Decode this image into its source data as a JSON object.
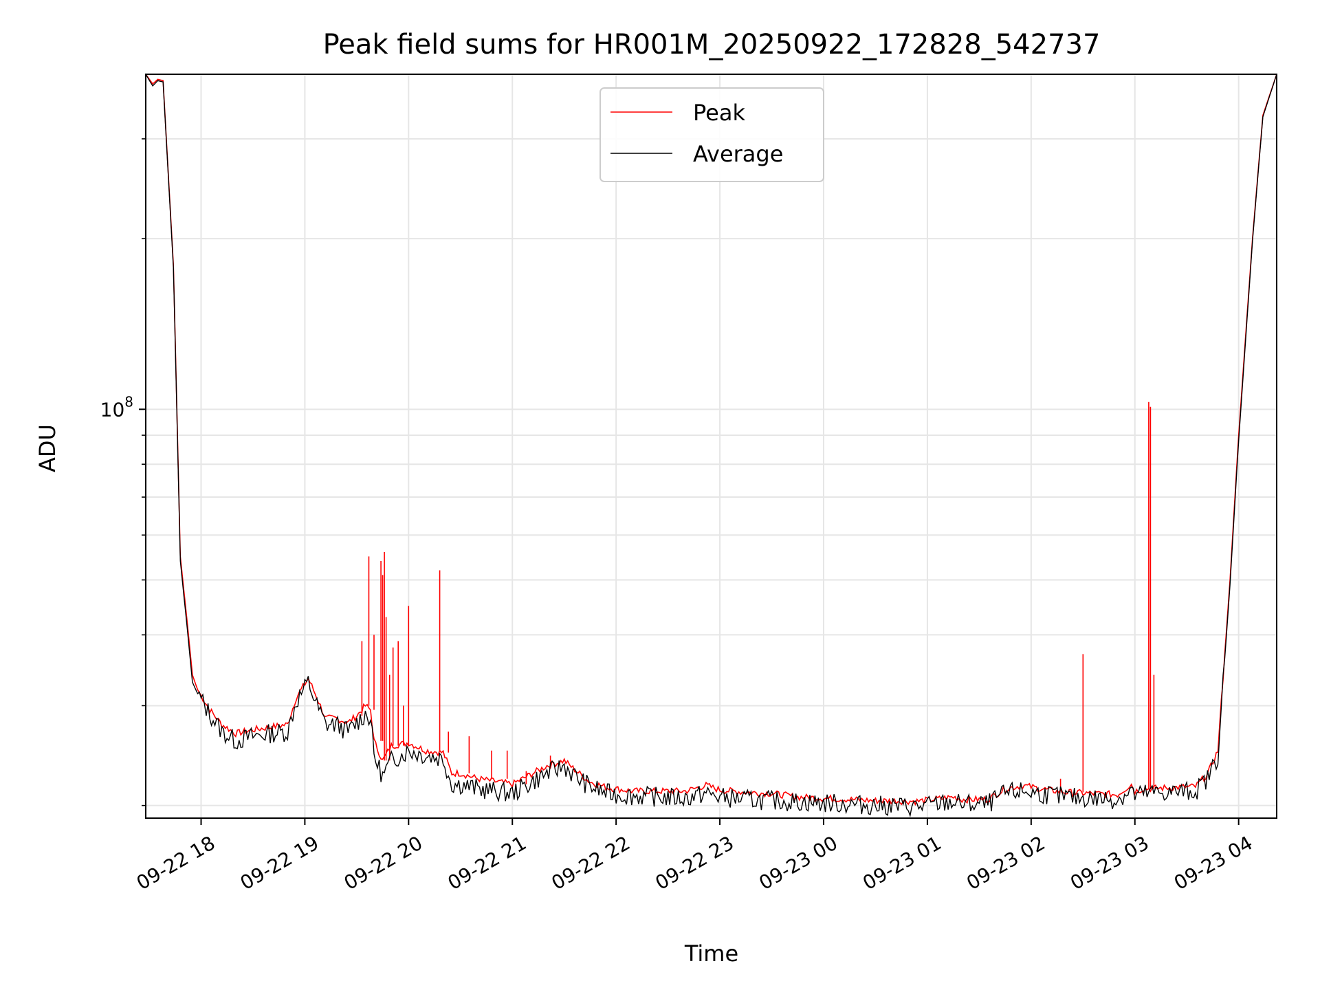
{
  "chart_data": {
    "type": "line",
    "title": "Peak field sums for HR001M_20250922_172828_542737",
    "xlabel": "Time",
    "ylabel": "ADU",
    "yscale": "log",
    "ylim": [
      19000000,
      390000000
    ],
    "xlim": [
      "2025-09-22 17:28",
      "2025-09-23 04:22"
    ],
    "x_ticks": [
      "09-22 18",
      "09-22 19",
      "09-22 20",
      "09-22 21",
      "09-22 22",
      "09-22 23",
      "09-23 00",
      "09-23 01",
      "09-23 02",
      "09-23 03",
      "09-23 04"
    ],
    "y_ticks": [
      {
        "label_base": "10",
        "label_exp": "8",
        "value": 100000000
      }
    ],
    "grid": true,
    "legend": {
      "placement": "upper-center",
      "entries": [
        "Peak",
        "Average"
      ]
    },
    "series": [
      {
        "name": "Peak",
        "color": "#ff0000",
        "x": [
          "2025-09-22 17:28",
          "2025-09-22 17:32",
          "2025-09-22 17:35",
          "2025-09-22 17:38",
          "2025-09-22 17:44",
          "2025-09-22 17:48",
          "2025-09-22 17:52",
          "2025-09-22 17:55",
          "2025-09-22 17:58",
          "2025-09-22 18:05",
          "2025-09-22 18:12",
          "2025-09-22 18:20",
          "2025-09-22 18:30",
          "2025-09-22 18:40",
          "2025-09-22 18:50",
          "2025-09-22 18:55",
          "2025-09-22 19:02",
          "2025-09-22 19:07",
          "2025-09-22 19:12",
          "2025-09-22 19:18",
          "2025-09-22 19:25",
          "2025-09-22 19:30",
          "2025-09-22 19:35",
          "2025-09-22 19:38",
          "2025-09-22 19:40",
          "2025-09-22 19:45",
          "2025-09-22 19:50",
          "2025-09-22 20:00",
          "2025-09-22 20:10",
          "2025-09-22 20:20",
          "2025-09-22 20:25",
          "2025-09-22 20:30",
          "2025-09-22 20:40",
          "2025-09-22 21:00",
          "2025-09-22 21:20",
          "2025-09-22 21:30",
          "2025-09-22 21:37",
          "2025-09-22 21:45",
          "2025-09-22 21:55",
          "2025-09-22 22:10",
          "2025-09-22 22:25",
          "2025-09-22 22:40",
          "2025-09-22 22:52",
          "2025-09-22 23:00",
          "2025-09-22 23:15",
          "2025-09-22 23:30",
          "2025-09-22 23:45",
          "2025-09-23 00:00",
          "2025-09-23 00:30",
          "2025-09-23 00:55",
          "2025-09-23 01:15",
          "2025-09-23 01:20",
          "2025-09-23 01:35",
          "2025-09-23 01:45",
          "2025-09-23 01:55",
          "2025-09-23 02:10",
          "2025-09-23 02:20",
          "2025-09-23 02:35",
          "2025-09-23 02:50",
          "2025-09-23 02:58",
          "2025-09-23 03:00",
          "2025-09-23 03:05",
          "2025-09-23 03:20",
          "2025-09-23 03:35",
          "2025-09-23 03:42",
          "2025-09-23 03:48",
          "2025-09-23 03:55",
          "2025-09-23 04:00",
          "2025-09-23 04:08",
          "2025-09-23 04:14",
          "2025-09-23 04:22"
        ],
        "y": [
          390000000,
          375000000,
          382000000,
          380000000,
          180000000,
          55000000,
          42000000,
          34000000,
          32000000,
          29500000,
          27800000,
          26800000,
          27200000,
          27500000,
          27800000,
          31000000,
          33500000,
          31000000,
          28500000,
          28500000,
          28000000,
          28800000,
          30000000,
          29500000,
          26000000,
          24000000,
          25500000,
          25800000,
          25000000,
          24800000,
          22800000,
          22800000,
          22300000,
          21800000,
          23500000,
          24000000,
          23000000,
          22000000,
          21500000,
          21200000,
          21200000,
          21200000,
          21700000,
          21300000,
          21100000,
          21000000,
          20700000,
          20600000,
          20400000,
          20350000,
          20700000,
          20500000,
          20500000,
          21400000,
          21700000,
          21300000,
          21100000,
          21000000,
          20900000,
          21800000,
          21200000,
          21400000,
          21500000,
          21600000,
          22700000,
          25000000,
          50000000,
          90000000,
          200000000,
          330000000,
          390000000
        ],
        "spikes": [
          {
            "x": "2025-09-22 19:33",
            "y": 39000000
          },
          {
            "x": "2025-09-22 19:37",
            "y": 55000000
          },
          {
            "x": "2025-09-22 19:40",
            "y": 40000000
          },
          {
            "x": "2025-09-22 19:44",
            "y": 54000000
          },
          {
            "x": "2025-09-22 19:45",
            "y": 51000000
          },
          {
            "x": "2025-09-22 19:46",
            "y": 56000000
          },
          {
            "x": "2025-09-22 19:47",
            "y": 43000000
          },
          {
            "x": "2025-09-22 19:49",
            "y": 34000000
          },
          {
            "x": "2025-09-22 19:51",
            "y": 38000000
          },
          {
            "x": "2025-09-22 19:54",
            "y": 39000000
          },
          {
            "x": "2025-09-22 19:57",
            "y": 30000000
          },
          {
            "x": "2025-09-22 20:00",
            "y": 45000000
          },
          {
            "x": "2025-09-22 20:18",
            "y": 52000000
          },
          {
            "x": "2025-09-22 20:23",
            "y": 27000000
          },
          {
            "x": "2025-09-22 20:35",
            "y": 26500000
          },
          {
            "x": "2025-09-22 20:48",
            "y": 25000000
          },
          {
            "x": "2025-09-22 20:57",
            "y": 25000000
          },
          {
            "x": "2025-09-22 21:08",
            "y": 23000000
          },
          {
            "x": "2025-09-22 21:22",
            "y": 24500000
          },
          {
            "x": "2025-09-23 02:17",
            "y": 22300000
          },
          {
            "x": "2025-09-23 02:30",
            "y": 37000000
          },
          {
            "x": "2025-09-23 03:08",
            "y": 103000000
          },
          {
            "x": "2025-09-23 03:09",
            "y": 101000000
          },
          {
            "x": "2025-09-23 03:11",
            "y": 34000000
          }
        ]
      },
      {
        "name": "Average",
        "color": "#000000",
        "x": [
          "2025-09-22 17:28",
          "2025-09-22 17:32",
          "2025-09-22 17:35",
          "2025-09-22 17:38",
          "2025-09-22 17:44",
          "2025-09-22 17:48",
          "2025-09-22 17:52",
          "2025-09-22 17:55",
          "2025-09-22 17:58",
          "2025-09-22 18:05",
          "2025-09-22 18:12",
          "2025-09-22 18:20",
          "2025-09-22 18:30",
          "2025-09-22 18:40",
          "2025-09-22 18:50",
          "2025-09-22 18:55",
          "2025-09-22 19:02",
          "2025-09-22 19:07",
          "2025-09-22 19:12",
          "2025-09-22 19:18",
          "2025-09-22 19:25",
          "2025-09-22 19:30",
          "2025-09-22 19:35",
          "2025-09-22 19:38",
          "2025-09-22 19:40",
          "2025-09-22 19:45",
          "2025-09-22 19:50",
          "2025-09-22 20:00",
          "2025-09-22 20:10",
          "2025-09-22 20:20",
          "2025-09-22 20:25",
          "2025-09-22 20:30",
          "2025-09-22 20:40",
          "2025-09-22 21:00",
          "2025-09-22 21:20",
          "2025-09-22 21:30",
          "2025-09-22 21:37",
          "2025-09-22 21:45",
          "2025-09-22 21:55",
          "2025-09-22 22:10",
          "2025-09-22 22:25",
          "2025-09-22 22:40",
          "2025-09-22 22:52",
          "2025-09-22 23:00",
          "2025-09-22 23:15",
          "2025-09-22 23:30",
          "2025-09-22 23:45",
          "2025-09-23 00:00",
          "2025-09-23 00:30",
          "2025-09-23 00:55",
          "2025-09-23 01:15",
          "2025-09-23 01:20",
          "2025-09-23 01:35",
          "2025-09-23 01:45",
          "2025-09-23 01:55",
          "2025-09-23 02:10",
          "2025-09-23 02:20",
          "2025-09-23 02:35",
          "2025-09-23 02:50",
          "2025-09-23 02:58",
          "2025-09-23 03:00",
          "2025-09-23 03:05",
          "2025-09-23 03:20",
          "2025-09-23 03:35",
          "2025-09-23 03:42",
          "2025-09-23 03:48",
          "2025-09-23 03:55",
          "2025-09-23 04:00",
          "2025-09-23 04:08",
          "2025-09-23 04:14",
          "2025-09-23 04:22"
        ],
        "y": [
          390000000,
          372000000,
          380000000,
          378000000,
          178000000,
          54000000,
          41000000,
          33000000,
          31500000,
          29000000,
          27000000,
          26000000,
          26500000,
          26800000,
          27000000,
          30500000,
          33000000,
          30000000,
          27800000,
          27800000,
          27000000,
          28000000,
          29000000,
          28500000,
          24500000,
          22500000,
          24000000,
          25000000,
          24500000,
          24200000,
          21800000,
          21800000,
          21400000,
          21000000,
          22800000,
          23500000,
          22400000,
          21600000,
          21000000,
          20800000,
          20700000,
          20600000,
          21000000,
          20700000,
          20500000,
          20400000,
          20300000,
          20200000,
          20000000,
          19900000,
          20300000,
          20100000,
          20100000,
          21000000,
          21200000,
          20900000,
          20700000,
          20600000,
          20500000,
          21300000,
          20800000,
          21000000,
          21100000,
          21200000,
          22300000,
          24500000,
          49000000,
          88000000,
          198000000,
          328000000,
          390000000
        ]
      }
    ]
  }
}
